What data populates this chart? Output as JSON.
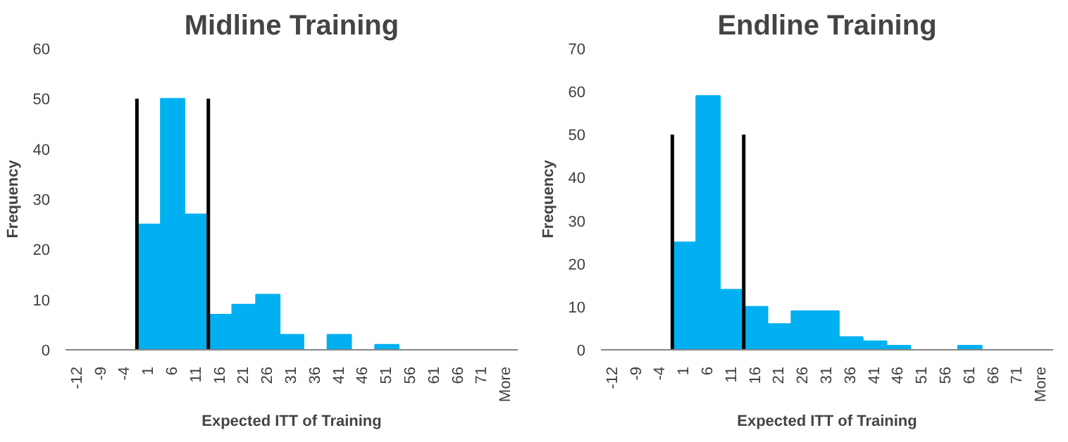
{
  "chart_data": [
    {
      "type": "bar",
      "title": "Midline Training",
      "xlabel": "Expected ITT of Training",
      "ylabel": "Frequency",
      "categories": [
        "-12",
        "-9",
        "-4",
        "1",
        "6",
        "11",
        "16",
        "21",
        "26",
        "31",
        "36",
        "41",
        "46",
        "51",
        "56",
        "61",
        "66",
        "71",
        "More"
      ],
      "ylim": [
        0,
        60
      ],
      "yticks": [
        0,
        10,
        20,
        30,
        40,
        50,
        60
      ],
      "grid": false,
      "series": [
        {
          "color": "#00b0f0",
          "values": [
            0,
            0,
            0,
            25,
            50,
            27,
            7,
            9,
            11,
            3,
            0,
            3,
            0,
            1,
            0,
            0,
            0,
            0,
            0
          ]
        }
      ]
    },
    {
      "type": "bar",
      "title": "Endline Training",
      "xlabel": "Expected ITT of Training",
      "ylabel": "Frequency",
      "categories": [
        "-12",
        "-9",
        "-4",
        "1",
        "6",
        "11",
        "16",
        "21",
        "26",
        "31",
        "36",
        "41",
        "46",
        "51",
        "56",
        "61",
        "66",
        "71",
        "More"
      ],
      "ylim": [
        0,
        70
      ],
      "yticks": [
        0,
        10,
        20,
        30,
        40,
        50,
        60,
        70
      ],
      "grid": false,
      "series": [
        {
          "color": "#00b0f0",
          "values": [
            0,
            0,
            0,
            25,
            59,
            14,
            10,
            6,
            9,
            9,
            3,
            2,
            1,
            0,
            0,
            1,
            0,
            0,
            0
          ]
        }
      ]
    }
  ]
}
